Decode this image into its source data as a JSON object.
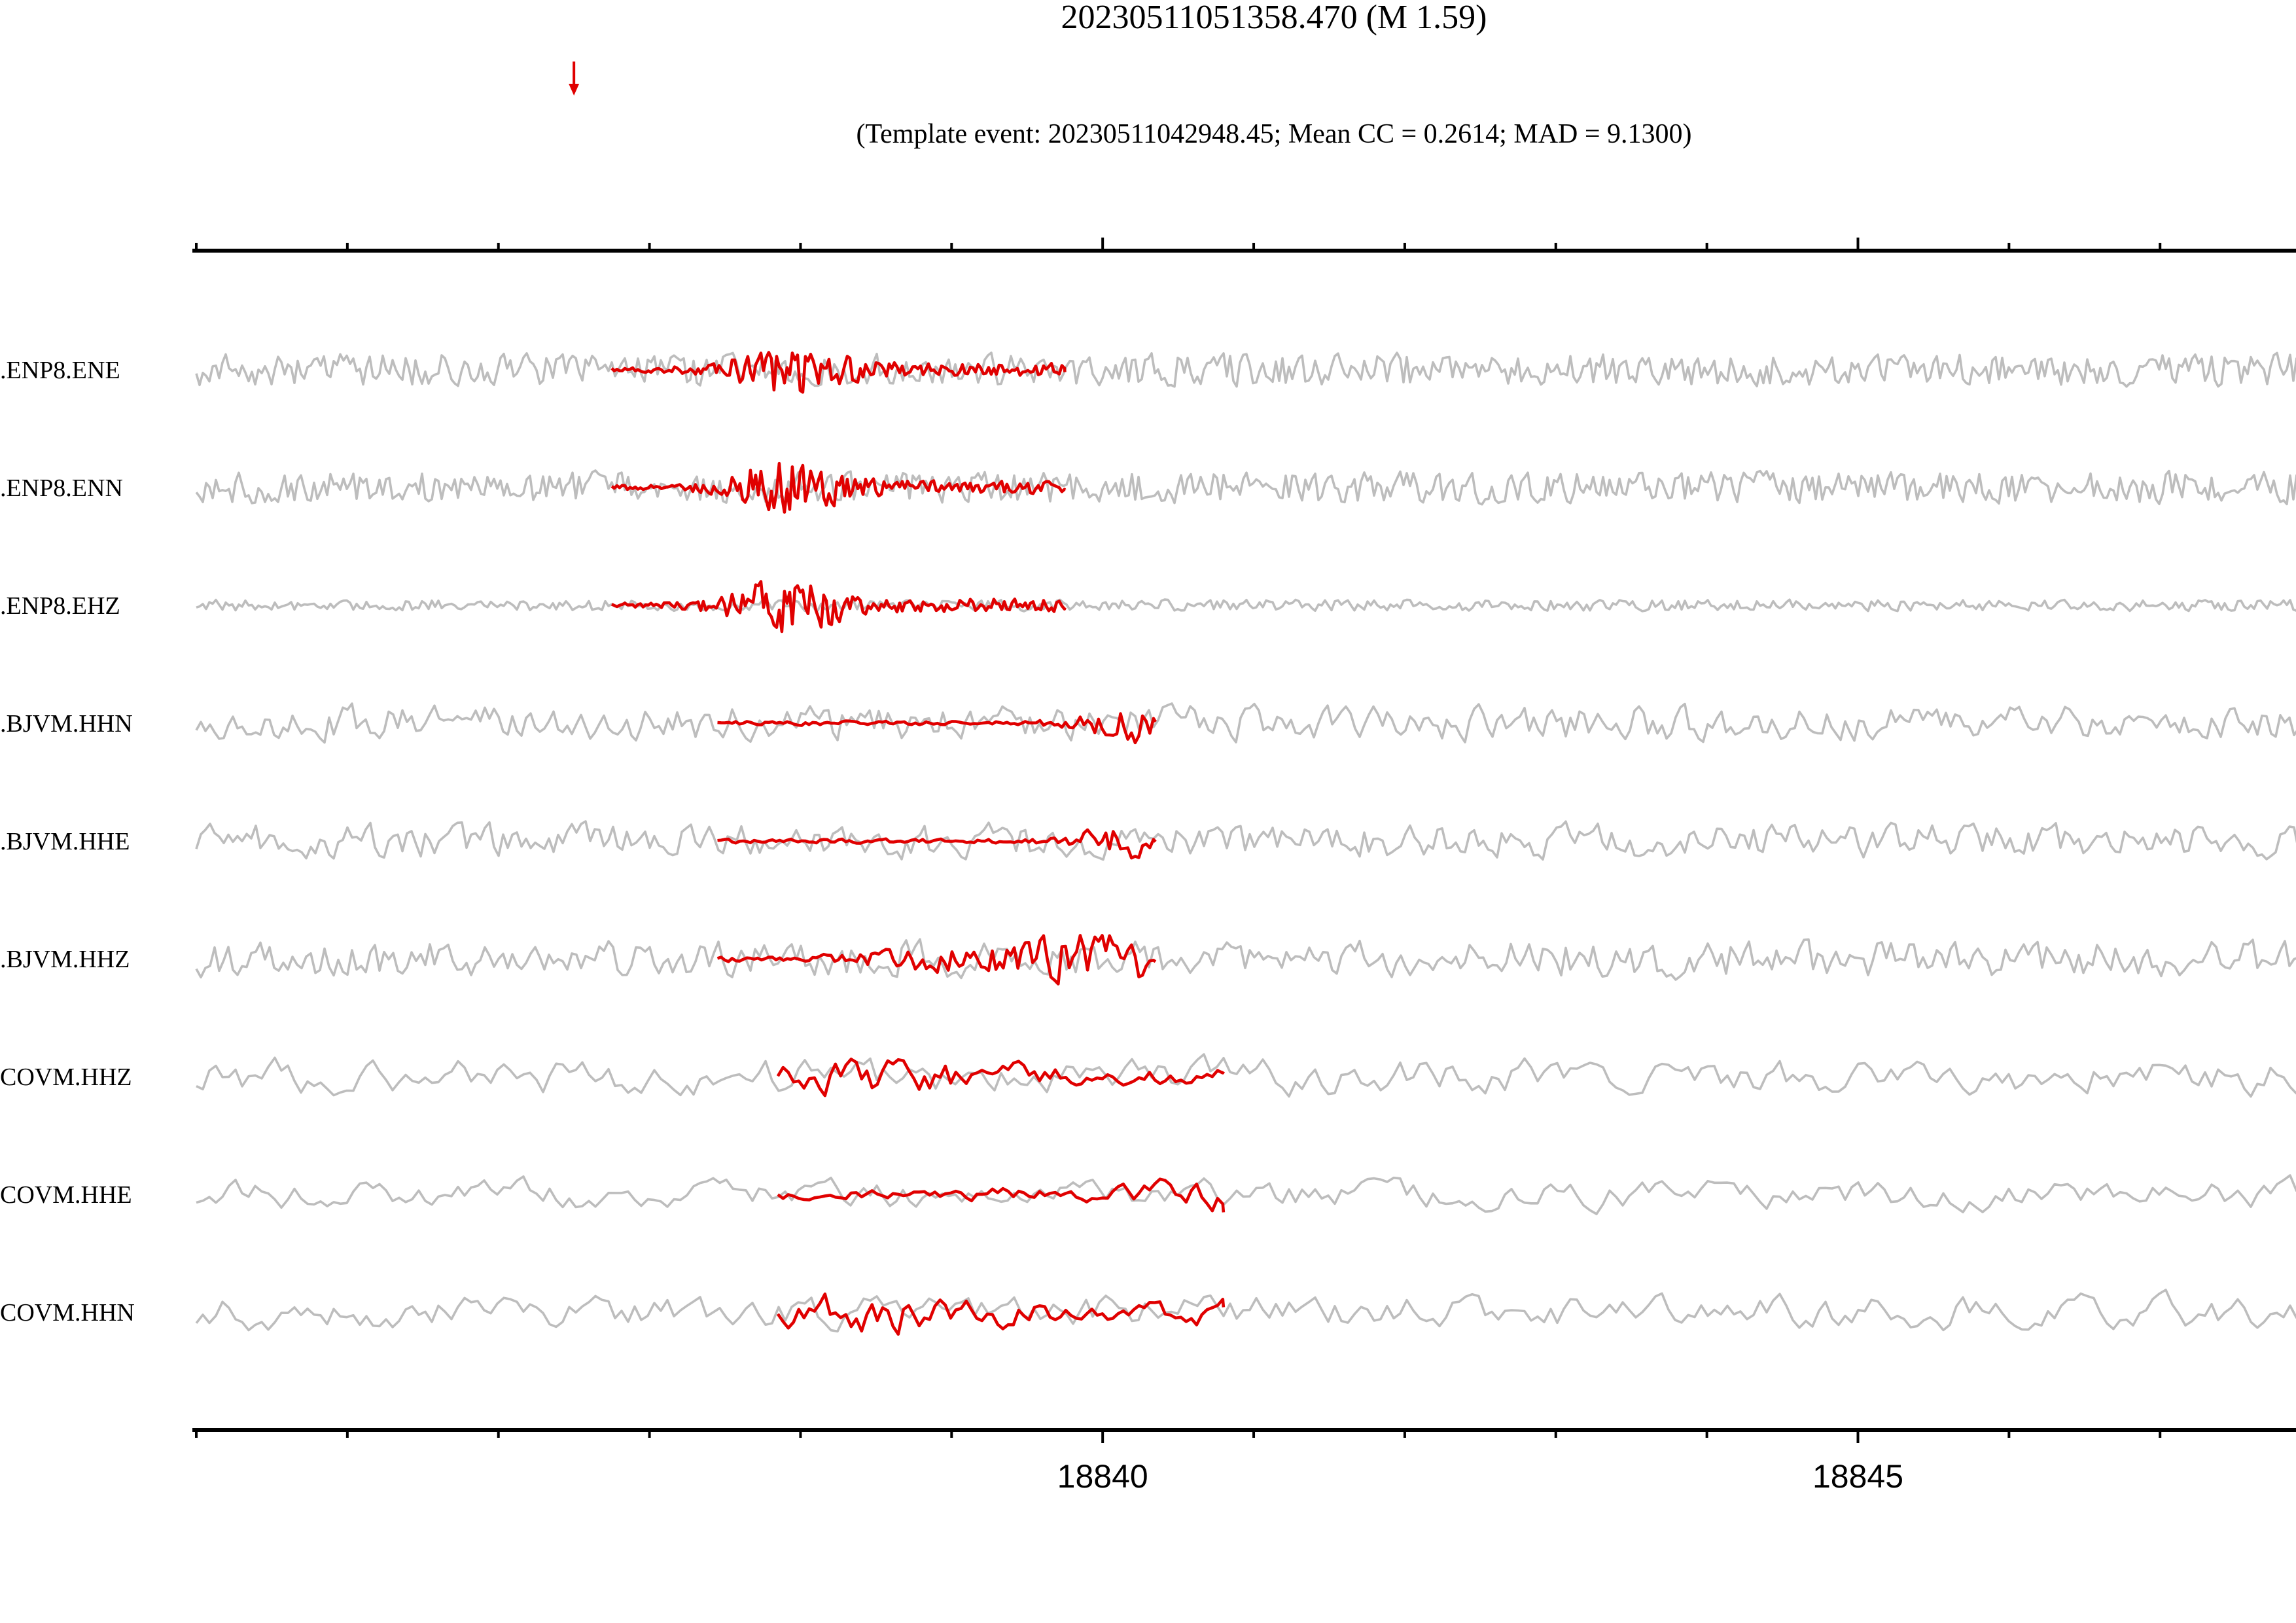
{
  "chart_data": {
    "type": "line",
    "title": "20230511051358.470 (M 1.59)",
    "subtitle": "(Template event: 20230511042948.45; Mean CC = 0.2614; MAD = 9.1300)",
    "xlabel": "",
    "ylabel": "",
    "xlim": [
      18834.0,
      18847.9
    ],
    "x_ticks": [
      18840,
      18845
    ],
    "x_tick_labels": [
      "18840",
      "18845"
    ],
    "minor_tick_step": 1,
    "arrow_marker_x": 18836.5,
    "grid": false,
    "legend": "none",
    "colors": {
      "continuous": "#bdbdbd",
      "template": "#e00000",
      "arrow": "#e00000",
      "axis": "#000000"
    },
    "traces": [
      {
        "label": ".ENP8.ENE",
        "template_window": [
          18836.75,
          18839.75
        ],
        "style": "hf"
      },
      {
        "label": ".ENP8.ENN",
        "template_window": [
          18836.75,
          18839.75
        ],
        "style": "hf"
      },
      {
        "label": ".ENP8.EHZ",
        "template_window": [
          18836.75,
          18839.75
        ],
        "style": "hf_z"
      },
      {
        "label": ".BJVM.HHN",
        "template_window": [
          18837.45,
          18840.35
        ],
        "style": "ramp"
      },
      {
        "label": ".BJVM.HHE",
        "template_window": [
          18837.45,
          18840.35
        ],
        "style": "ramp"
      },
      {
        "label": ".BJVM.HHZ",
        "template_window": [
          18837.45,
          18840.35
        ],
        "style": "mid"
      },
      {
        "label": "COVM.HHZ",
        "template_window": [
          18837.85,
          18840.8
        ],
        "style": "lf"
      },
      {
        "label": "COVM.HHE",
        "template_window": [
          18837.85,
          18840.8
        ],
        "style": "lf_low"
      },
      {
        "label": "COVM.HHN",
        "template_window": [
          18837.85,
          18840.8
        ],
        "style": "lf"
      }
    ]
  }
}
